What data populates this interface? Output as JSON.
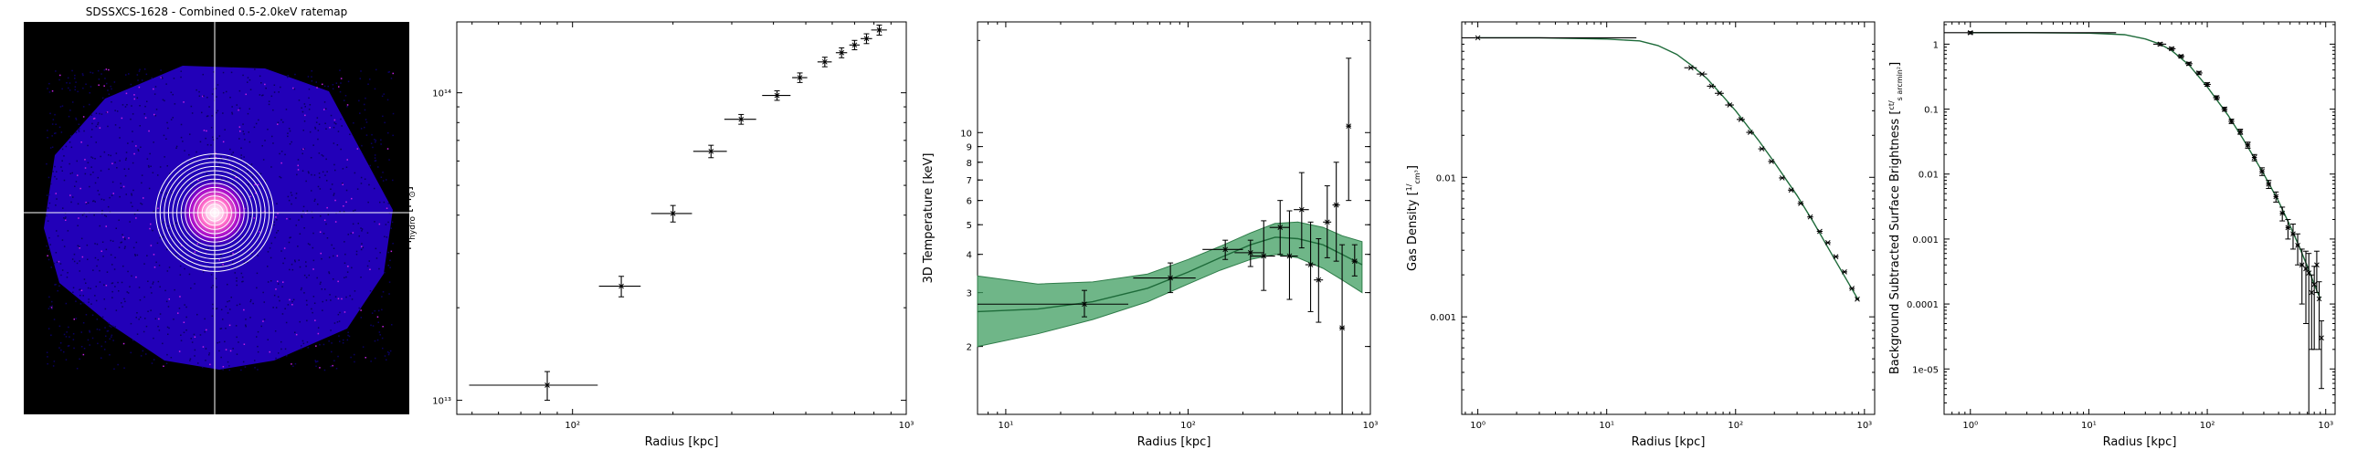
{
  "figure": {
    "panels": [
      {
        "id": "ratemap",
        "title": "SDSSXCS-1628 - Combined 0.5-2.0keV ratemap",
        "image": {
          "type": "x-ray-ratemap",
          "rings": 14,
          "colors": {
            "background": "#000000",
            "noise": "#2a00c8",
            "core": "#ffffff",
            "glow": "#ff6ac8",
            "crosshair": "#ffffff"
          }
        }
      }
    ]
  },
  "chart_data": [
    {
      "id": "mass",
      "type": "scatter",
      "xlabel": "Radius [kpc]",
      "ylabel": "M",
      "ylabel_sub": "hydro",
      "ylabel_unit": " [M",
      "ylabel_unit_sub": "⊙",
      "ylabel_unit_close": "]",
      "xscale": "log",
      "yscale": "log",
      "xlim": [
        45,
        1000
      ],
      "ylim": [
        9000000000000,
        170000000000000
      ],
      "xticks": [
        {
          "v": 100,
          "label": "10²"
        },
        {
          "v": 1000,
          "label": "10³"
        }
      ],
      "yticks": [
        {
          "v": 10000000000000,
          "label": "10¹³"
        },
        {
          "v": 100000000000000,
          "label": "10¹⁴"
        }
      ],
      "series": [
        {
          "x": [
            84,
            140,
            200,
            260,
            320,
            410,
            480,
            570,
            640,
            700,
            760,
            830
          ],
          "xerr": [
            35,
            20,
            28,
            30,
            35,
            40,
            25,
            28,
            25,
            25,
            30,
            45
          ],
          "y": [
            11200000000000,
            23500000000000,
            40500000000000,
            64500000000000,
            82000000000000,
            98000000000000,
            112000000000000,
            126000000000000,
            135000000000000,
            143000000000000,
            150000000000000,
            160000000000000
          ],
          "yerr": [
            1200000000000,
            1800000000000,
            2500000000000,
            3000000000000,
            3000000000000,
            3500000000000,
            4000000000000,
            4500000000000,
            5000000000000,
            5000000000000,
            5500000000000,
            6000000000000
          ]
        }
      ],
      "colors": {
        "points": "#000000"
      }
    },
    {
      "id": "temperature",
      "type": "line",
      "xlabel": "Radius [kpc]",
      "ylabel": "3D Temperature [keV]",
      "xscale": "log",
      "yscale": "log",
      "xlim": [
        7,
        1000
      ],
      "ylim": [
        1.2,
        23
      ],
      "xticks": [
        {
          "v": 10,
          "label": "10¹"
        },
        {
          "v": 100,
          "label": "10²"
        },
        {
          "v": 1000,
          "label": "10³"
        }
      ],
      "yticks": [
        {
          "v": 2,
          "label": "2"
        },
        {
          "v": 3,
          "label": "3"
        },
        {
          "v": 4,
          "label": "4"
        },
        {
          "v": 5,
          "label": "5"
        },
        {
          "v": 6,
          "label": "6"
        },
        {
          "v": 7,
          "label": "7"
        },
        {
          "v": 8,
          "label": "8"
        },
        {
          "v": 9,
          "label": "9"
        },
        {
          "v": 10,
          "label": "10"
        }
      ],
      "model": {
        "x": [
          7,
          15,
          30,
          60,
          100,
          150,
          220,
          300,
          400,
          550,
          700,
          900
        ],
        "y": [
          2.6,
          2.65,
          2.8,
          3.1,
          3.5,
          3.9,
          4.3,
          4.55,
          4.5,
          4.3,
          4.0,
          3.7
        ],
        "lo": [
          2.0,
          2.2,
          2.45,
          2.8,
          3.2,
          3.55,
          3.85,
          4.0,
          3.9,
          3.6,
          3.3,
          3.0
        ],
        "hi": [
          3.4,
          3.2,
          3.25,
          3.45,
          3.85,
          4.25,
          4.7,
          5.05,
          5.1,
          4.9,
          4.6,
          4.4
        ]
      },
      "points": {
        "x": [
          27,
          80,
          160,
          220,
          260,
          320,
          360,
          420,
          470,
          520,
          580,
          650,
          700,
          760,
          820
        ],
        "xerr": [
          20,
          30,
          40,
          40,
          40,
          40,
          40,
          40,
          30,
          30,
          30,
          30,
          25,
          25,
          30
        ],
        "y": [
          2.75,
          3.35,
          4.15,
          4.05,
          3.95,
          4.9,
          3.95,
          5.6,
          3.7,
          3.3,
          5.1,
          5.8,
          2.3,
          10.5,
          3.8
        ],
        "ylo": [
          0.25,
          0.35,
          0.3,
          0.4,
          0.9,
          0.9,
          1.1,
          1.4,
          1.1,
          0.9,
          1.2,
          2.0,
          1.2,
          4.5,
          0.4
        ],
        "yhi": [
          0.3,
          0.4,
          0.3,
          0.4,
          1.2,
          1.1,
          1.6,
          1.8,
          1.4,
          1.2,
          1.6,
          2.2,
          2.0,
          7.0,
          0.5
        ]
      },
      "colors": {
        "band": "#3f9e60",
        "line": "#1e6b3a",
        "points": "#000000"
      }
    },
    {
      "id": "density",
      "type": "line",
      "xlabel": "Radius [kpc]",
      "ylabel": "Gas Density ",
      "ylabel_unit_num": "1",
      "ylabel_unit_den": "cm³",
      "xscale": "log",
      "yscale": "log",
      "xlim": [
        0.75,
        1200
      ],
      "ylim": [
        0.0002,
        0.13
      ],
      "xticks": [
        {
          "v": 1,
          "label": "10⁰"
        },
        {
          "v": 10,
          "label": "10¹"
        },
        {
          "v": 100,
          "label": "10²"
        },
        {
          "v": 1000,
          "label": "10³"
        }
      ],
      "yticks": [
        {
          "v": 0.001,
          "label": "0.001"
        },
        {
          "v": 0.01,
          "label": "0.01"
        }
      ],
      "model": {
        "x": [
          1,
          3,
          10,
          18,
          25,
          35,
          45,
          60,
          80,
          100,
          150,
          200,
          300,
          400,
          600,
          900
        ],
        "y": [
          0.1,
          0.1,
          0.098,
          0.095,
          0.088,
          0.076,
          0.064,
          0.051,
          0.038,
          0.03,
          0.0185,
          0.0128,
          0.0074,
          0.0048,
          0.0025,
          0.00131
        ]
      },
      "points": {
        "x": [
          1,
          45,
          55,
          65,
          75,
          90,
          110,
          130,
          160,
          190,
          230,
          270,
          320,
          380,
          450,
          520,
          600,
          700,
          800,
          880
        ],
        "xerr": [
          16,
          5,
          5,
          5,
          6,
          7,
          8,
          9,
          10,
          11,
          13,
          15,
          17,
          20,
          23,
          26,
          30,
          35,
          40,
          30
        ],
        "y": [
          0.1,
          0.061,
          0.055,
          0.045,
          0.04,
          0.033,
          0.026,
          0.021,
          0.016,
          0.013,
          0.0099,
          0.0081,
          0.0065,
          0.0052,
          0.0041,
          0.0034,
          0.0027,
          0.0021,
          0.0016,
          0.00134
        ]
      },
      "colors": {
        "line": "#1e6b3a",
        "points": "#000000"
      }
    },
    {
      "id": "surface-brightness",
      "type": "line",
      "xlabel": "Radius [kpc]",
      "ylabel": "Background Subtracted Surface Brightness ",
      "ylabel_unit_num": "ct",
      "ylabel_unit_den": "s arcmin²",
      "xscale": "log",
      "yscale": "log",
      "xlim": [
        0.6,
        1200
      ],
      "ylim": [
        2e-06,
        2.2
      ],
      "xticks": [
        {
          "v": 1,
          "label": "10⁰"
        },
        {
          "v": 10,
          "label": "10¹"
        },
        {
          "v": 100,
          "label": "10²"
        },
        {
          "v": 1000,
          "label": "10³"
        }
      ],
      "yticks": [
        {
          "v": 1e-05,
          "label": "1e-05"
        },
        {
          "v": 0.0001,
          "label": "0.0001"
        },
        {
          "v": 0.001,
          "label": "0.001"
        },
        {
          "v": 0.01,
          "label": "0.01"
        },
        {
          "v": 0.1,
          "label": "0.1"
        },
        {
          "v": 1,
          "label": "1"
        }
      ],
      "model": {
        "x": [
          1,
          3,
          10,
          20,
          30,
          40,
          50,
          70,
          100,
          150,
          200,
          300,
          400,
          500,
          600,
          700,
          800,
          900
        ],
        "y": [
          1.5,
          1.5,
          1.48,
          1.4,
          1.2,
          1.0,
          0.8,
          0.48,
          0.22,
          0.08,
          0.035,
          0.01,
          0.0038,
          0.0016,
          0.00075,
          0.00038,
          0.0002,
          0.00012
        ]
      },
      "points": {
        "x": [
          1,
          40,
          50,
          60,
          70,
          85,
          100,
          120,
          140,
          160,
          190,
          220,
          250,
          290,
          330,
          380,
          430,
          480,
          530,
          580,
          630,
          680,
          720,
          760,
          800,
          840,
          880,
          920
        ],
        "xerr": [
          16,
          5,
          4,
          4,
          5,
          6,
          7,
          8,
          8,
          9,
          10,
          11,
          12,
          14,
          16,
          18,
          20,
          22,
          22,
          22,
          22,
          20,
          18,
          18,
          18,
          18,
          18,
          18
        ],
        "y": [
          1.5,
          1.0,
          0.85,
          0.65,
          0.5,
          0.36,
          0.24,
          0.15,
          0.1,
          0.065,
          0.045,
          0.028,
          0.018,
          0.011,
          0.007,
          0.0045,
          0.0025,
          0.0015,
          0.0012,
          0.0008,
          0.0004,
          0.00035,
          0.0003,
          0.00015,
          0.0002,
          0.0004,
          0.00012,
          3e-05
        ],
        "yerr": [
          0.06,
          0.05,
          0.04,
          0.03,
          0.025,
          0.02,
          0.015,
          0.01,
          0.007,
          0.005,
          0.004,
          0.003,
          0.002,
          0.0015,
          0.001,
          0.0008,
          0.0006,
          0.0005,
          0.0005,
          0.0004,
          0.0003,
          0.0003,
          0.0003,
          0.00013,
          0.00018,
          0.00025,
          0.0001,
          2.5e-05
        ]
      },
      "colors": {
        "line": "#1e6b3a",
        "points": "#000000"
      }
    }
  ]
}
